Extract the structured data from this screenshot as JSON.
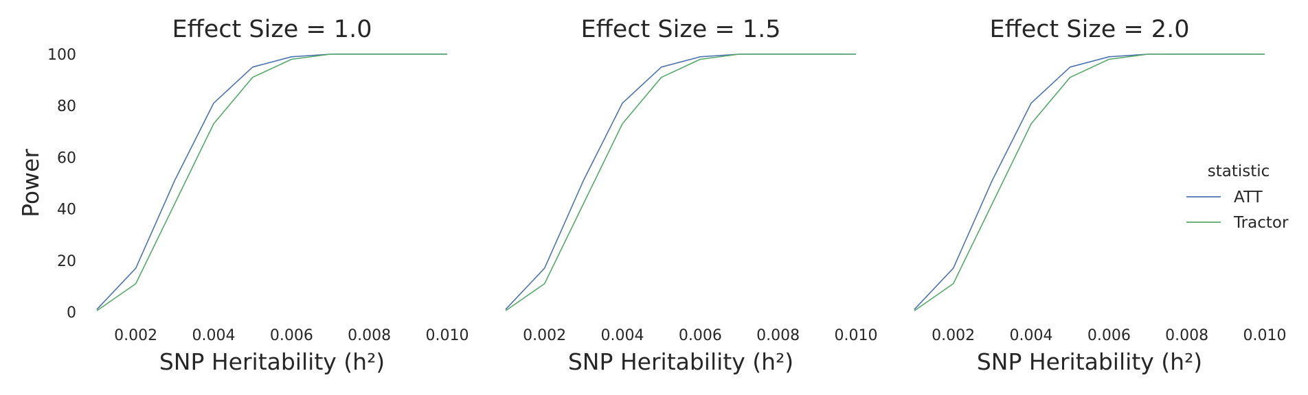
{
  "chart_data": [
    {
      "type": "line",
      "title": "Effect Size = 1.0",
      "xlabel": "SNP Heritability (h²)",
      "ylabel": "Power",
      "xlim": [
        0.001,
        0.01
      ],
      "ylim": [
        0,
        100
      ],
      "x": [
        0.001,
        0.002,
        0.003,
        0.004,
        0.005,
        0.006,
        0.007,
        0.008,
        0.009,
        0.01
      ],
      "xticks": [
        "0.002",
        "0.004",
        "0.006",
        "0.008",
        "0.010"
      ],
      "yticks": [
        "0",
        "20",
        "40",
        "60",
        "80",
        "100"
      ],
      "series": [
        {
          "name": "ATT",
          "values": [
            1,
            17,
            51,
            81,
            95,
            99,
            100,
            100,
            100,
            100
          ]
        },
        {
          "name": "Tractor",
          "values": [
            0.5,
            11,
            42,
            73,
            91,
            98,
            100,
            100,
            100,
            100
          ]
        }
      ]
    },
    {
      "type": "line",
      "title": "Effect Size = 1.5",
      "xlabel": "SNP Heritability (h²)",
      "ylabel": "",
      "xlim": [
        0.001,
        0.01
      ],
      "ylim": [
        0,
        100
      ],
      "x": [
        0.001,
        0.002,
        0.003,
        0.004,
        0.005,
        0.006,
        0.007,
        0.008,
        0.009,
        0.01
      ],
      "xticks": [
        "0.002",
        "0.004",
        "0.006",
        "0.008",
        "0.010"
      ],
      "yticks": [],
      "series": [
        {
          "name": "ATT",
          "values": [
            1,
            17,
            51,
            81,
            95,
            99,
            100,
            100,
            100,
            100
          ]
        },
        {
          "name": "Tractor",
          "values": [
            0.5,
            11,
            42,
            73,
            91,
            98,
            100,
            100,
            100,
            100
          ]
        }
      ]
    },
    {
      "type": "line",
      "title": "Effect Size = 2.0",
      "xlabel": "SNP Heritability (h²)",
      "ylabel": "",
      "xlim": [
        0.001,
        0.01
      ],
      "ylim": [
        0,
        100
      ],
      "x": [
        0.001,
        0.002,
        0.003,
        0.004,
        0.005,
        0.006,
        0.007,
        0.008,
        0.009,
        0.01
      ],
      "xticks": [
        "0.002",
        "0.004",
        "0.006",
        "0.008",
        "0.010"
      ],
      "yticks": [],
      "series": [
        {
          "name": "ATT",
          "values": [
            1,
            17,
            51,
            81,
            95,
            99,
            100,
            100,
            100,
            100
          ]
        },
        {
          "name": "Tractor",
          "values": [
            0.5,
            11,
            42,
            73,
            91,
            98,
            100,
            100,
            100,
            100
          ]
        }
      ]
    }
  ],
  "legend": {
    "title": "statistic",
    "placement": "right",
    "items": [
      {
        "label": "ATT",
        "color": "#4c72b0"
      },
      {
        "label": "Tractor",
        "color": "#55a868"
      }
    ]
  },
  "colors": {
    "ATT": "#4c72b0",
    "Tractor": "#55a868",
    "text": "#262626"
  },
  "grid": false
}
